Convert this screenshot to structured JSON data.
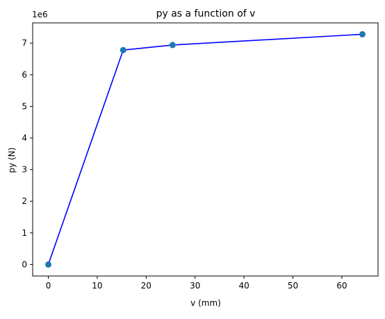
{
  "chart_data": {
    "type": "line",
    "title": "py as a function of v",
    "xlabel": "v (mm)",
    "ylabel": "py (N)",
    "y_scale_label": "1e6",
    "xlim": [
      -3.2,
      67.4
    ],
    "ylim": [
      -0.364,
      7.64
    ],
    "x_ticks": [
      0,
      10,
      20,
      30,
      40,
      50,
      60
    ],
    "y_ticks": [
      0,
      1,
      2,
      3,
      4,
      5,
      6,
      7
    ],
    "grid": false,
    "series": [
      {
        "x": [
          0,
          15.3,
          25.4,
          64.2
        ],
        "y": [
          0,
          6.78,
          6.94,
          7.28
        ],
        "line_color": "#0000ff",
        "marker_color": "#1f77b4",
        "marker": "circle"
      }
    ]
  }
}
